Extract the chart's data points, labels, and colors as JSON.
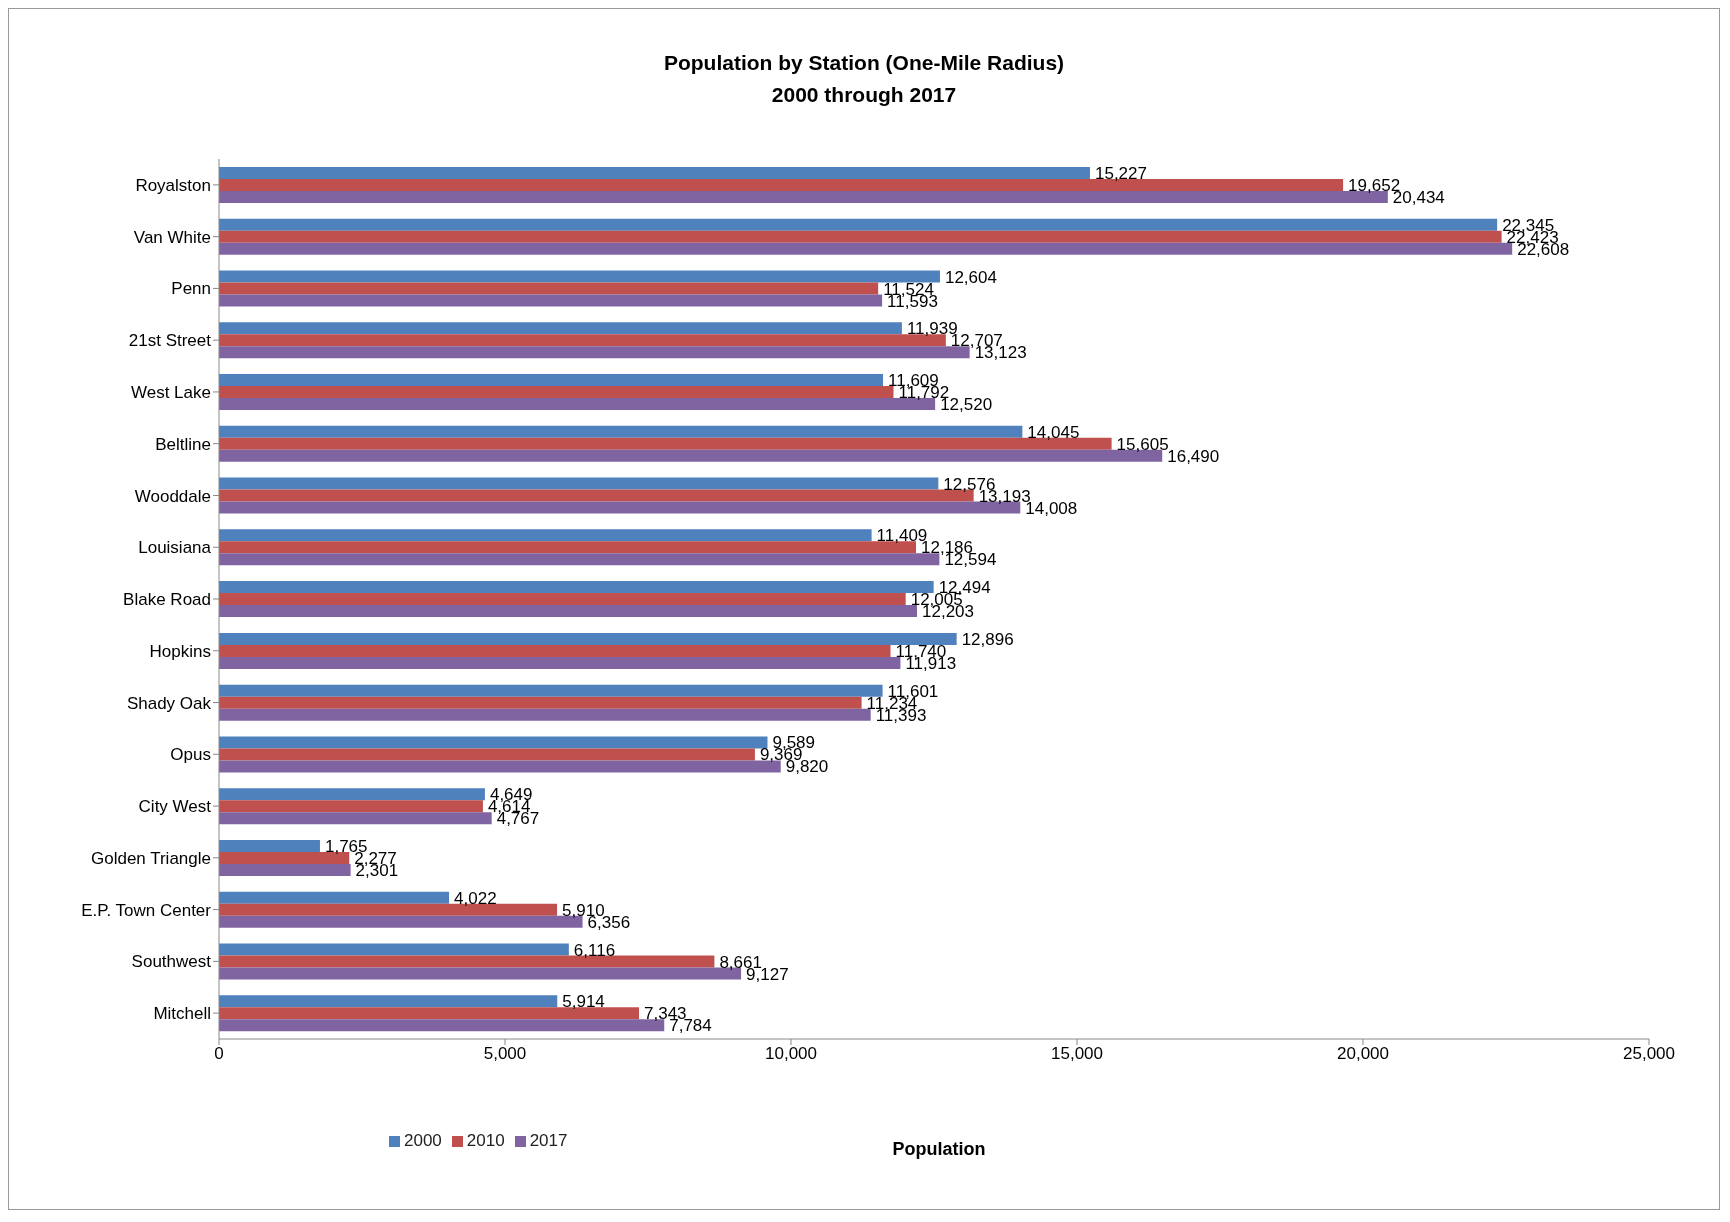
{
  "chart_data": {
    "type": "bar",
    "orientation": "horizontal",
    "title": "Population by Station (One-Mile Radius)",
    "subtitle": "2000 through 2017",
    "xlabel": "Population",
    "categories": [
      "Royalston",
      "Van White",
      "Penn",
      "21st Street",
      "West Lake",
      "Beltline",
      "Wooddale",
      "Louisiana",
      "Blake Road",
      "Hopkins",
      "Shady Oak",
      "Opus",
      "City West",
      "Golden Triangle",
      "E.P. Town Center",
      "Southwest",
      "Mitchell"
    ],
    "series": [
      {
        "name": "2000",
        "color": "#4f81bd",
        "values": [
          15227,
          22345,
          12604,
          11939,
          11609,
          14045,
          12576,
          11409,
          12494,
          12896,
          11601,
          9589,
          4649,
          1765,
          4022,
          6116,
          5914
        ],
        "value_labels": [
          "15,227",
          "22,345",
          "12,604",
          "11,939",
          "11,609",
          "14,045",
          "12,576",
          "11,409",
          "12,494",
          "12,896",
          "11,601",
          "9,589",
          "4,649",
          "1,765",
          "4,022",
          "6,116",
          "5,914"
        ]
      },
      {
        "name": "2010",
        "color": "#c0504d",
        "values": [
          19652,
          22423,
          11524,
          12707,
          11792,
          15605,
          13193,
          12186,
          12005,
          11740,
          11234,
          9369,
          4614,
          2277,
          5910,
          8661,
          7343
        ],
        "value_labels": [
          "19,652",
          "22,423",
          "11,524",
          "12,707",
          "11,792",
          "15,605",
          "13,193",
          "12,186",
          "12,005",
          "11,740",
          "11,234",
          "9,369",
          "4,614",
          "2,277",
          "5,910",
          "8,661",
          "7,343"
        ]
      },
      {
        "name": "2017",
        "color": "#8064a2",
        "values": [
          20434,
          22608,
          11593,
          13123,
          12520,
          16490,
          14008,
          12594,
          12203,
          11913,
          11393,
          9820,
          4767,
          2301,
          6356,
          9127,
          7784
        ],
        "value_labels": [
          "20,434",
          "22,608",
          "11,593",
          "13,123",
          "12,520",
          "16,490",
          "14,008",
          "12,594",
          "12,203",
          "11,913",
          "11,393",
          "9,820",
          "4,767",
          "2,301",
          "6,356",
          "9,127",
          "7,784"
        ]
      }
    ],
    "xlim": [
      0,
      25000
    ],
    "xticks": [
      0,
      {
        "value": 5000,
        "label": "5,000"
      },
      {
        "value": 10000,
        "label": "10,000"
      },
      {
        "value": 15000,
        "label": "15,000"
      },
      {
        "value": 20000,
        "label": "20,000"
      },
      {
        "value": 25000,
        "label": "25,000"
      }
    ],
    "grid": false,
    "legend": "bottom"
  }
}
